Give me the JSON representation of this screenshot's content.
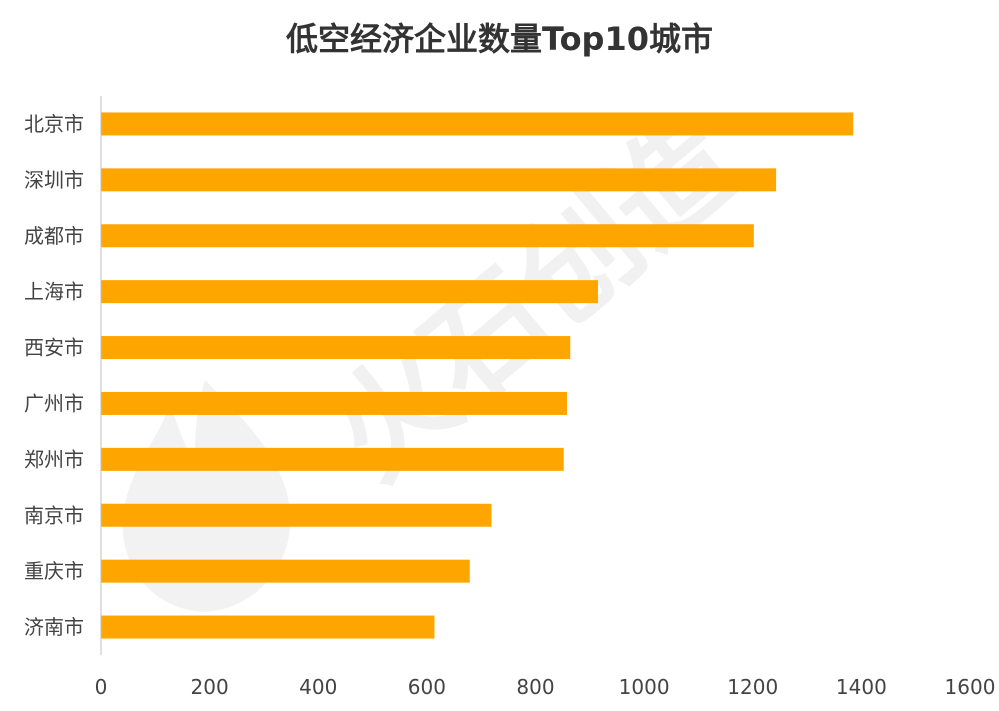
{
  "chart_data": {
    "type": "bar",
    "orientation": "horizontal",
    "title": "低空经济企业数量Top10城市",
    "categories": [
      "北京市",
      "深圳市",
      "成都市",
      "上海市",
      "西安市",
      "广州市",
      "郑州市",
      "南京市",
      "重庆市",
      "济南市"
    ],
    "values": [
      1385,
      1243,
      1202,
      915,
      864,
      858,
      852,
      719,
      679,
      614
    ],
    "xlim": [
      0,
      1600
    ],
    "xticks": [
      0,
      200,
      400,
      600,
      800,
      1000,
      1200,
      1400,
      1600
    ],
    "grid": false,
    "legend": "none",
    "bar_color": "#FFA500",
    "axis_color": "#bfbfbf"
  },
  "watermark": {
    "text": "火石创造",
    "icon": "flame-logo-icon"
  }
}
